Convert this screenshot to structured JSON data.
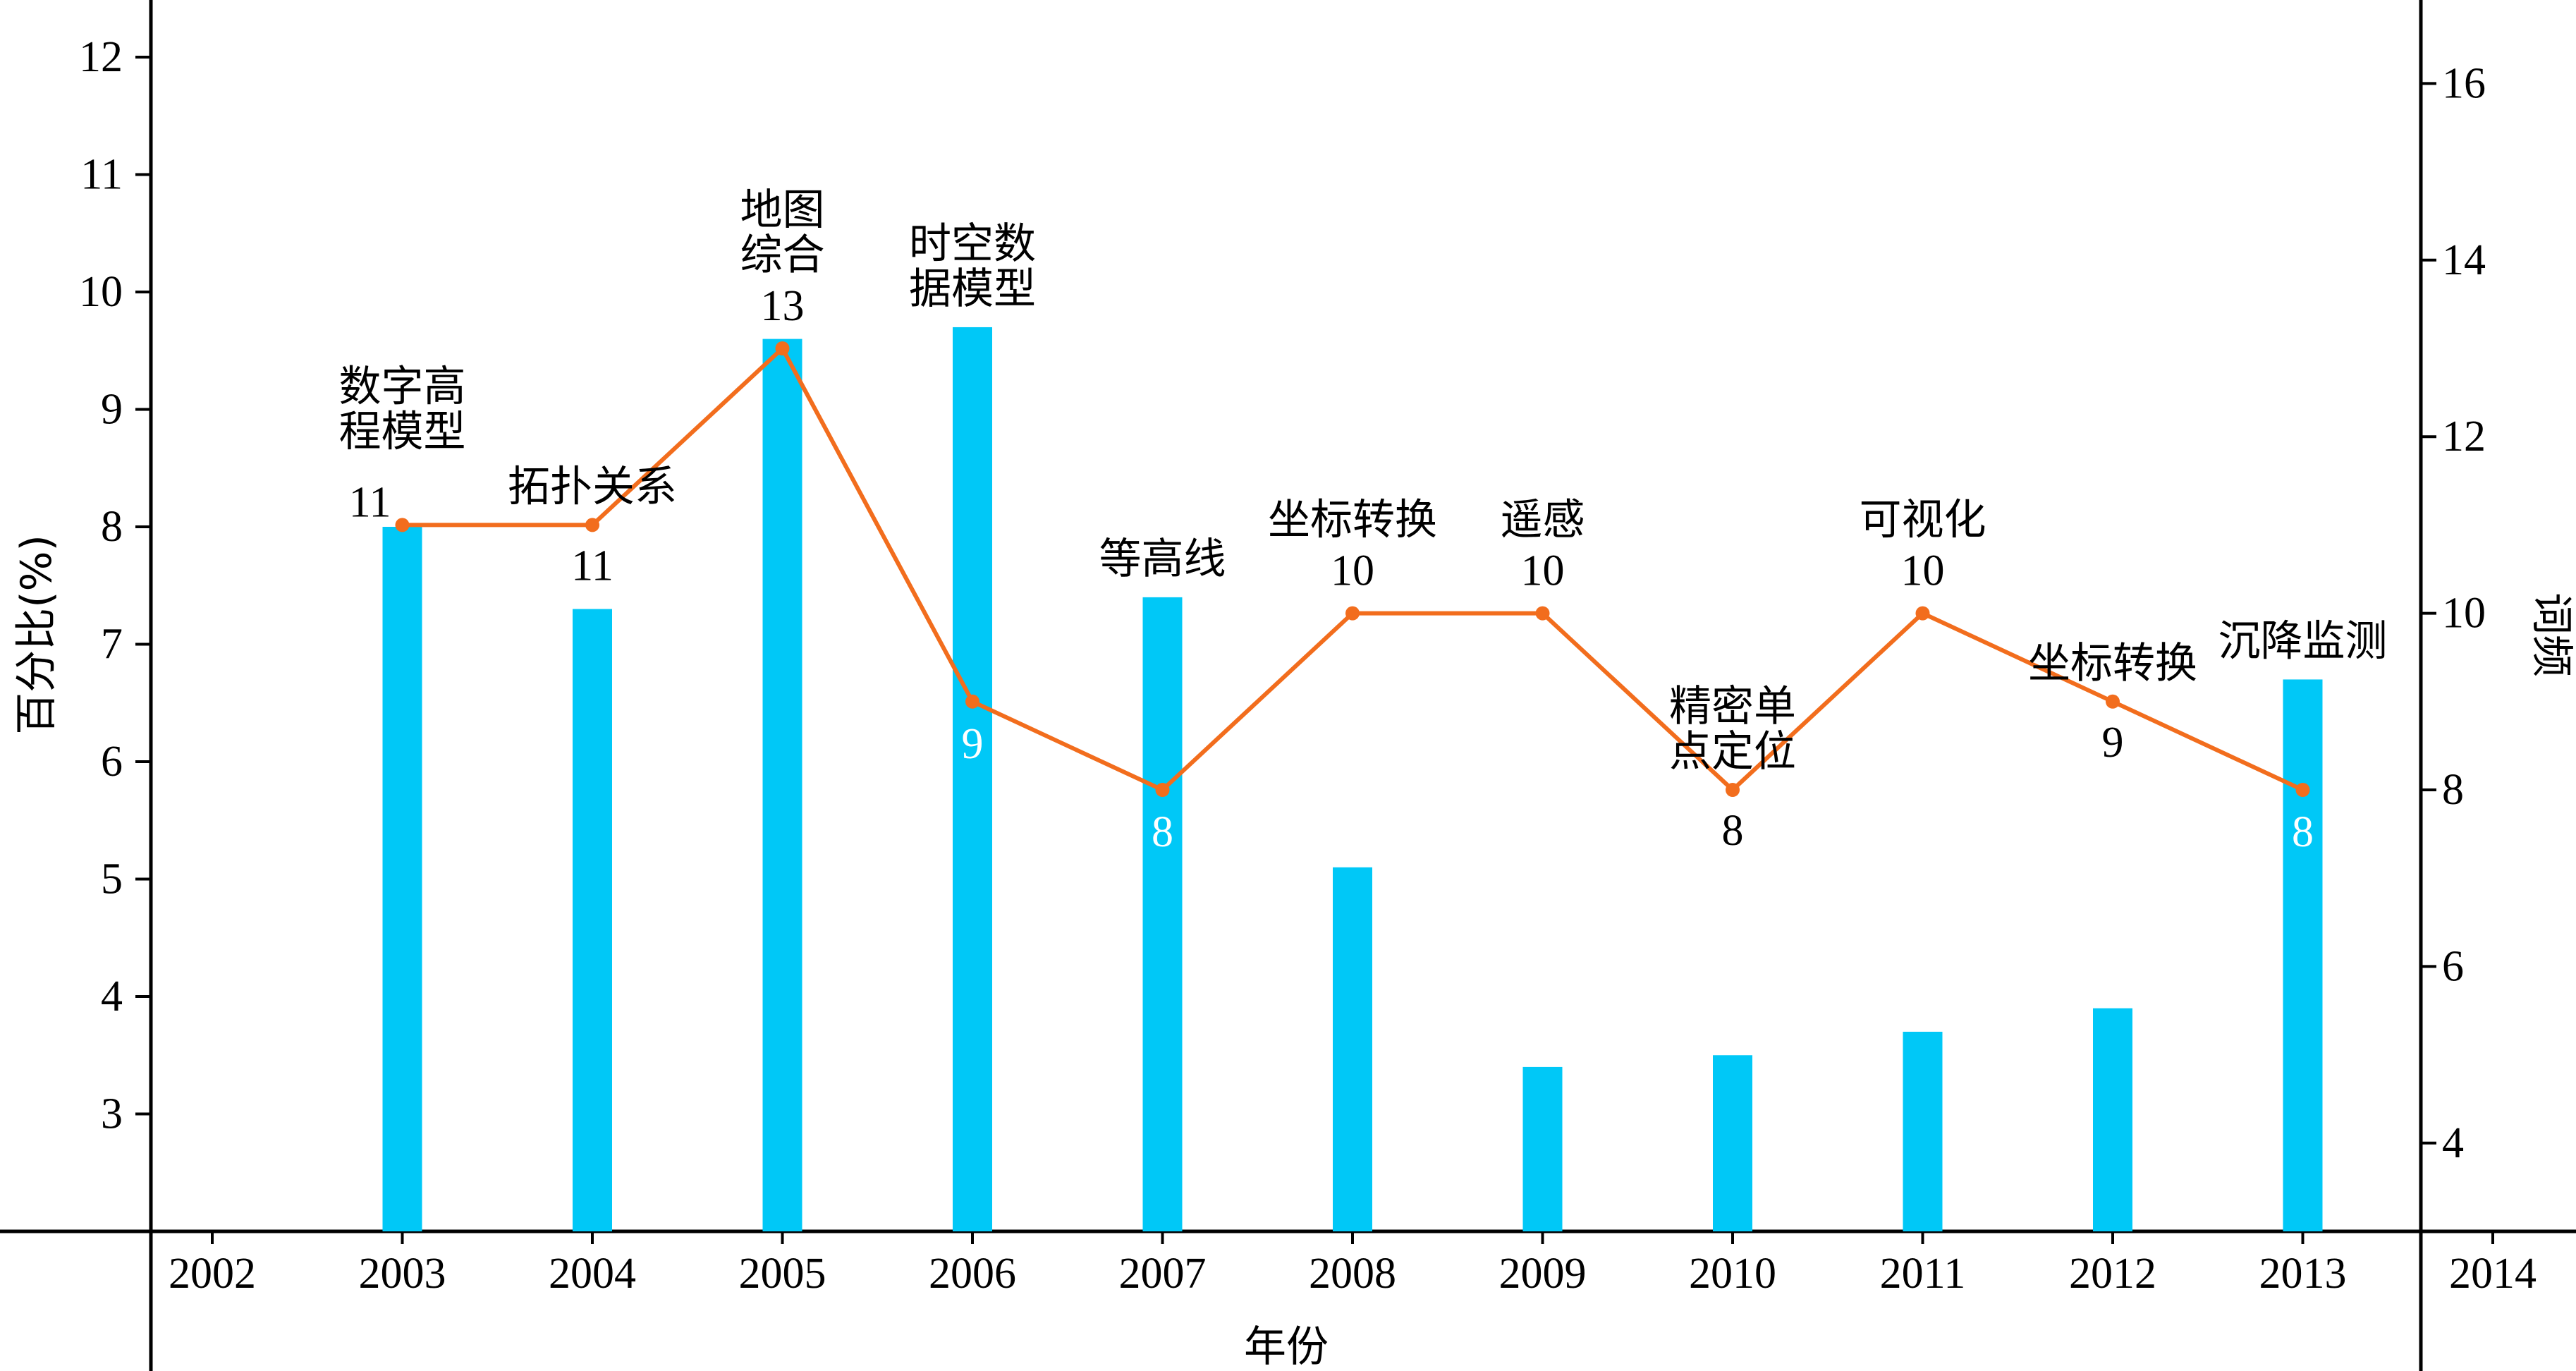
{
  "chart_data": {
    "type": "bar+line",
    "xlabel": "年份",
    "ylabel_left": "百分比(%)",
    "ylabel_right": "词频",
    "x_ticks": [
      "2002",
      "2003",
      "2004",
      "2005",
      "2006",
      "2007",
      "2008",
      "2009",
      "2010",
      "2011",
      "2012",
      "2013",
      "2014"
    ],
    "ylim_left": [
      2,
      12.5
    ],
    "yticks_left": [
      3,
      4,
      5,
      6,
      7,
      8,
      9,
      10,
      11,
      12
    ],
    "ylim_right": [
      3,
      17
    ],
    "yticks_right": [
      4,
      6,
      8,
      10,
      12,
      14,
      16
    ],
    "colors": {
      "bar": "#00c8f7",
      "line": "#f26d1d",
      "axis": "#000000"
    },
    "bar_series": {
      "name": "百分比",
      "x": [
        "2003",
        "2004",
        "2005",
        "2006",
        "2007",
        "2008",
        "2009",
        "2010",
        "2011",
        "2012",
        "2013"
      ],
      "values": [
        8.0,
        7.3,
        9.6,
        9.7,
        7.4,
        5.1,
        3.4,
        3.5,
        3.7,
        3.9,
        6.7
      ],
      "keywords": [
        [
          "数字高",
          "程模型"
        ],
        [
          "拓扑关系"
        ],
        [
          "地图",
          "综合"
        ],
        [
          "时空数",
          "据模型"
        ],
        [
          "等高线"
        ],
        [
          "坐标转换"
        ],
        [
          "遥感"
        ],
        [
          "精密单",
          "点定位"
        ],
        [
          "可视化"
        ],
        [
          "坐标转换"
        ],
        [
          "沉降监测"
        ]
      ]
    },
    "line_series": {
      "name": "词频",
      "x": [
        "2003",
        "2004",
        "2005",
        "2006",
        "2007",
        "2008",
        "2009",
        "2010",
        "2011",
        "2012",
        "2013"
      ],
      "values": [
        11,
        11,
        13,
        9,
        8,
        10,
        10,
        8,
        10,
        9,
        8
      ],
      "labels": [
        "11",
        "11",
        "13",
        "9",
        "8",
        "10",
        "10",
        "8",
        "10",
        "9",
        "8"
      ]
    }
  }
}
